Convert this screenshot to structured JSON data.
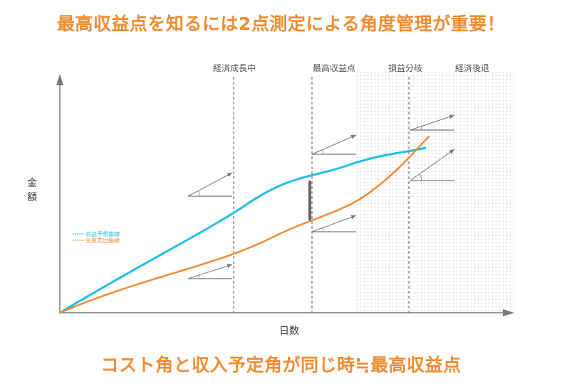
{
  "header": {
    "title": "最高収益点を知るには2点測定による角度管理が重要！"
  },
  "footer": {
    "caption": "コスト角と収入予定角が同じ時≒最高収益点"
  },
  "chart_data": {
    "type": "line",
    "xlabel": "日数",
    "ylabel": "金額",
    "phases": [
      "経済成長中",
      "最高収益点",
      "損益分岐",
      "経済後退"
    ],
    "series": [
      {
        "name": "収益予想曲線",
        "color": "#22bde8"
      },
      {
        "name": "生産支出曲線",
        "color": "#f08c32"
      }
    ],
    "grid": false,
    "legend": "left",
    "colors": {
      "accent": "#f08c32",
      "revenue": "#22bde8",
      "cost": "#f08c32",
      "axis": "#777777"
    }
  }
}
